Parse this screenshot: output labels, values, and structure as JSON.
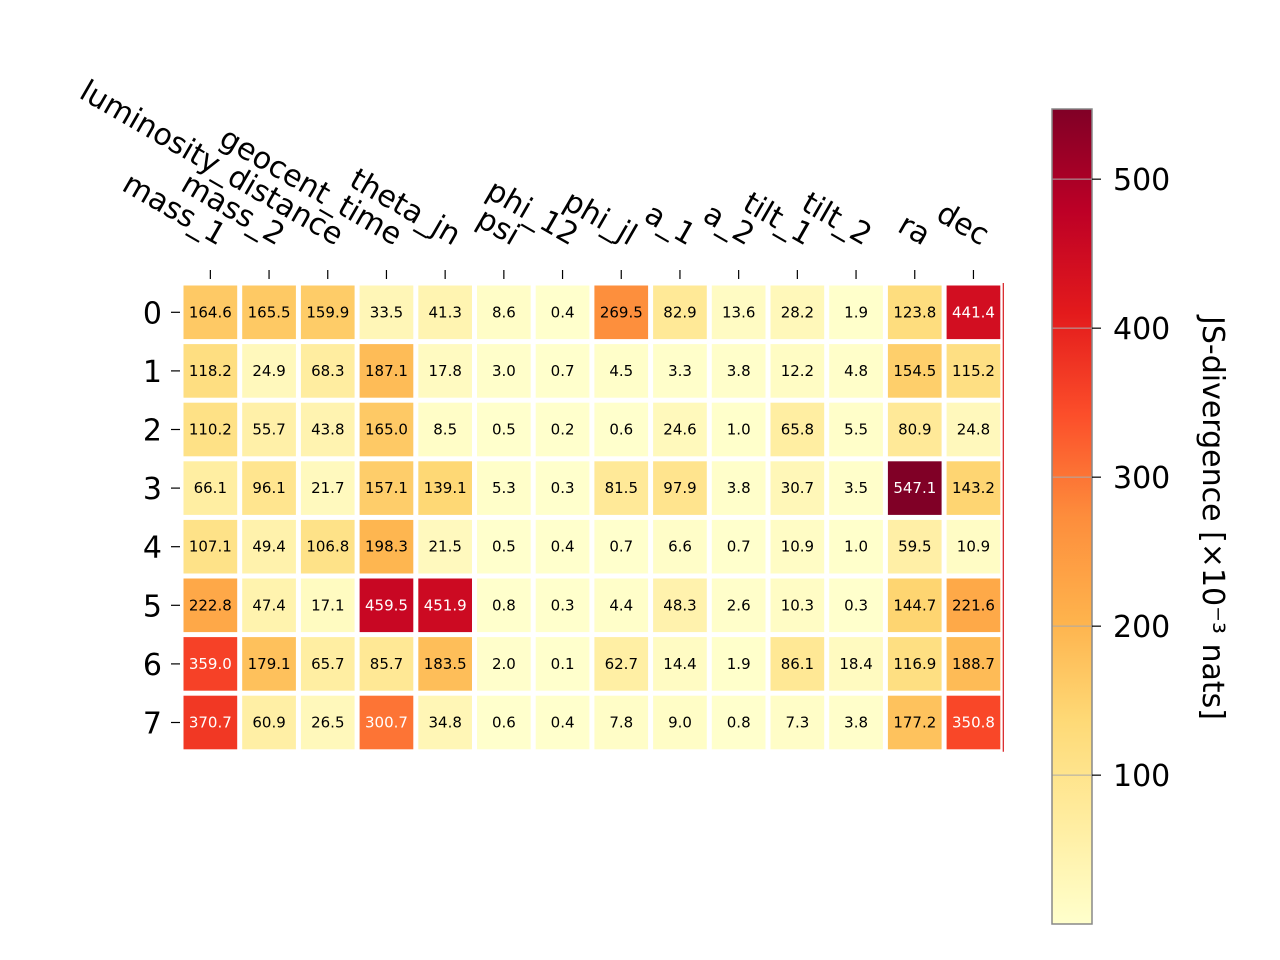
{
  "chart_data": {
    "type": "heatmap",
    "columns": [
      "mass_1",
      "mass_2",
      "luminosity_distance",
      "geocent_time",
      "theta_jn",
      "psi",
      "phi_12",
      "phi_jl",
      "a_1",
      "a_2",
      "tilt_1",
      "tilt_2",
      "ra",
      "dec"
    ],
    "rows": [
      "0",
      "1",
      "2",
      "3",
      "4",
      "5",
      "6",
      "7"
    ],
    "values": [
      [
        164.6,
        165.5,
        159.9,
        33.5,
        41.3,
        8.6,
        0.4,
        269.5,
        82.9,
        13.6,
        28.2,
        1.9,
        123.8,
        441.4
      ],
      [
        118.2,
        24.9,
        68.3,
        187.1,
        17.8,
        3.0,
        0.7,
        4.5,
        3.3,
        3.8,
        12.2,
        4.8,
        154.5,
        115.2
      ],
      [
        110.2,
        55.7,
        43.8,
        165.0,
        8.5,
        0.5,
        0.2,
        0.6,
        24.6,
        1.0,
        65.8,
        5.5,
        80.9,
        24.8
      ],
      [
        66.1,
        96.1,
        21.7,
        157.1,
        139.1,
        5.3,
        0.3,
        81.5,
        97.9,
        3.8,
        30.7,
        3.5,
        547.1,
        143.2
      ],
      [
        107.1,
        49.4,
        106.8,
        198.3,
        21.5,
        0.5,
        0.4,
        0.7,
        6.6,
        0.7,
        10.9,
        1.0,
        59.5,
        10.9
      ],
      [
        222.8,
        47.4,
        17.1,
        459.5,
        451.9,
        0.8,
        0.3,
        4.4,
        48.3,
        2.6,
        10.3,
        0.3,
        144.7,
        221.6
      ],
      [
        359.0,
        179.1,
        65.7,
        85.7,
        183.5,
        2.0,
        0.1,
        62.7,
        14.4,
        1.9,
        86.1,
        18.4,
        116.9,
        188.7
      ],
      [
        370.7,
        60.9,
        26.5,
        300.7,
        34.8,
        0.6,
        0.4,
        7.8,
        9.0,
        0.8,
        7.3,
        3.8,
        177.2,
        350.8
      ]
    ],
    "colormap": "YlOrRd",
    "value_range": [
      0.1,
      547.1
    ],
    "colorbar": {
      "label": "JS-divergence [×10⁻³ nats]",
      "ticks": [
        100,
        200,
        300,
        400,
        500
      ]
    }
  }
}
